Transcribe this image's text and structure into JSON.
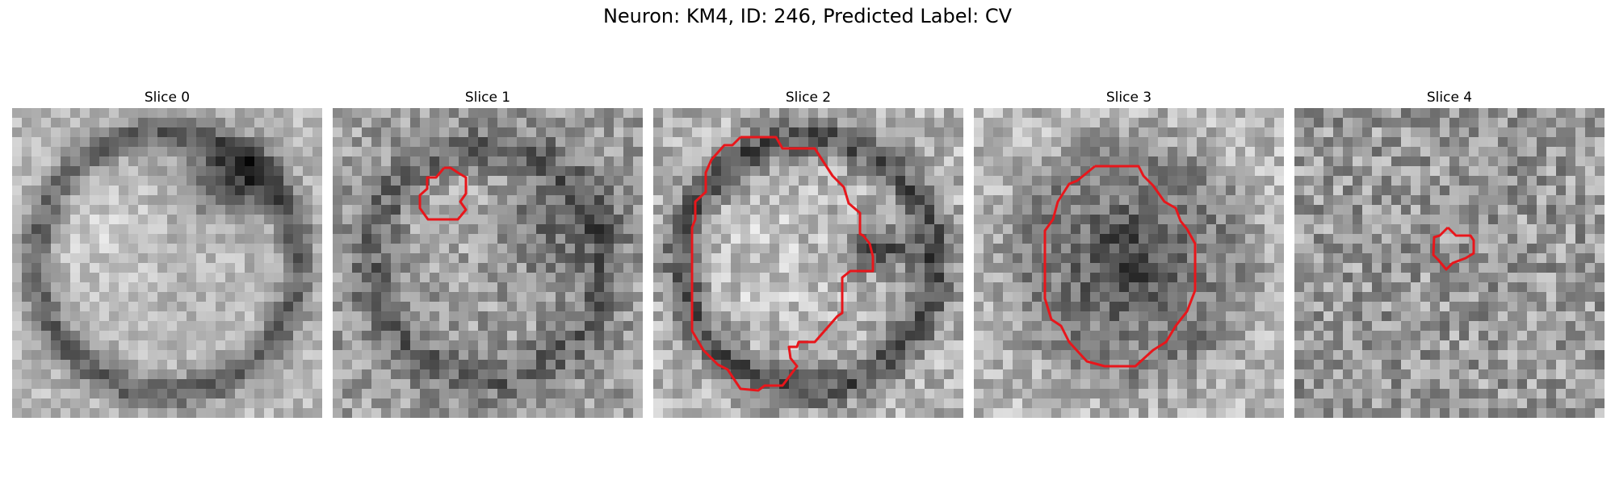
{
  "figure": {
    "title": "Neuron: KM4, ID: 246, Predicted Label: CV"
  },
  "colors": {
    "contour": "#e8161b"
  },
  "panels": [
    {
      "title": "Slice 0",
      "pattern": "ring-dark-top-right",
      "seed": 11,
      "contrast": 0.55,
      "has_contour": false
    },
    {
      "title": "Slice 1",
      "pattern": "ring-noisy",
      "seed": 23,
      "contrast": 0.8,
      "has_contour": true
    },
    {
      "title": "Slice 2",
      "pattern": "cell-bright",
      "seed": 37,
      "contrast": 0.8,
      "has_contour": true
    },
    {
      "title": "Slice 3",
      "pattern": "cell-dark",
      "seed": 41,
      "contrast": 0.75,
      "has_contour": true
    },
    {
      "title": "Slice 4",
      "pattern": "noise",
      "seed": 53,
      "contrast": 0.95,
      "has_contour": true
    }
  ]
}
